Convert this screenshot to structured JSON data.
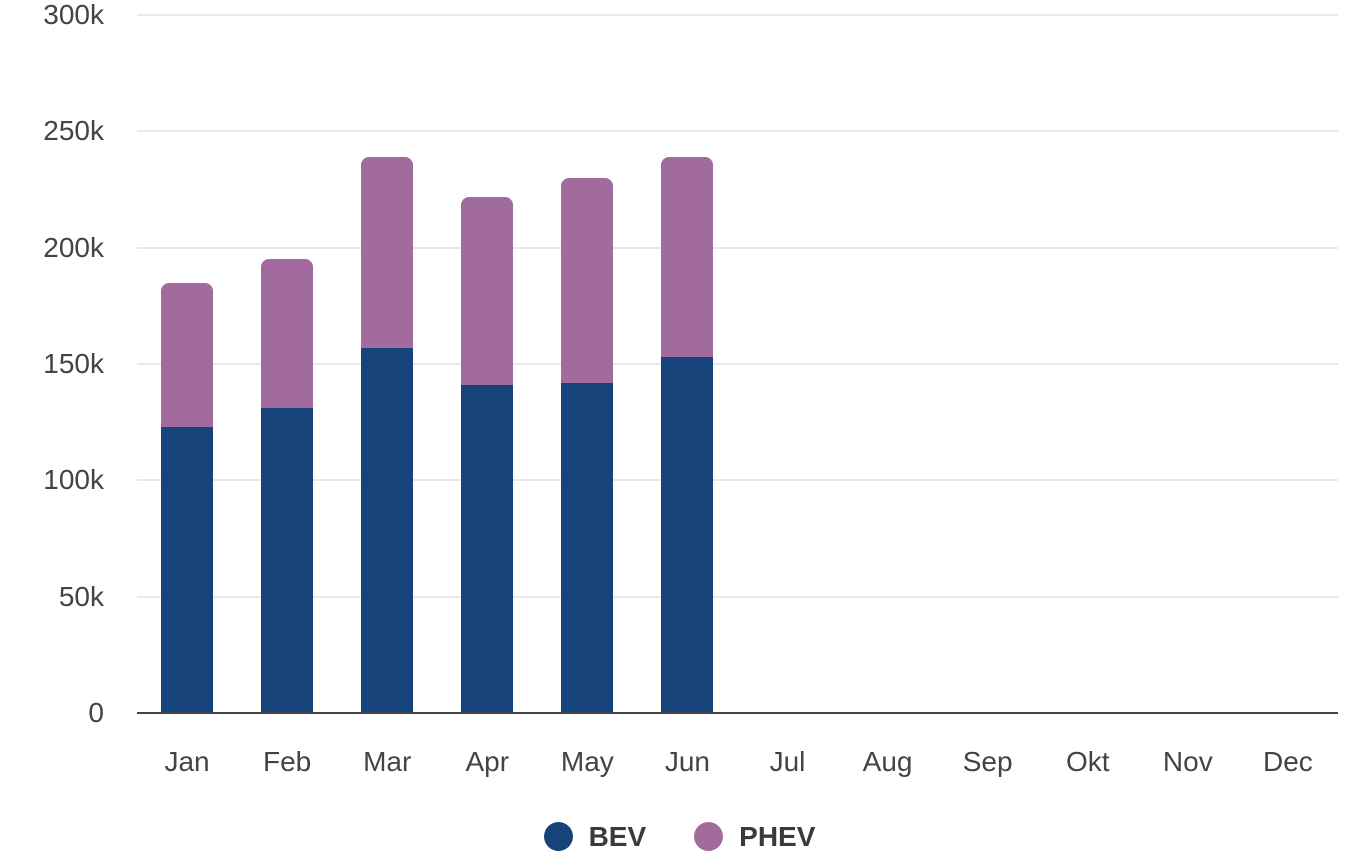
{
  "chart_data": {
    "type": "bar",
    "stacked": true,
    "title": "",
    "xlabel": "",
    "ylabel": "",
    "categories": [
      "Jan",
      "Feb",
      "Mar",
      "Apr",
      "May",
      "Jun",
      "Jul",
      "Aug",
      "Sep",
      "Okt",
      "Nov",
      "Dec"
    ],
    "series": [
      {
        "name": "BEV",
        "color": "#17437B",
        "values": [
          123000,
          131000,
          157000,
          141000,
          142000,
          153000,
          0,
          0,
          0,
          0,
          0,
          0
        ]
      },
      {
        "name": "PHEV",
        "color": "#A26B9D",
        "values": [
          62000,
          64000,
          82000,
          81000,
          88000,
          86000,
          0,
          0,
          0,
          0,
          0,
          0
        ]
      }
    ],
    "totals": [
      185000,
      195000,
      239000,
      222000,
      230000,
      239000,
      0,
      0,
      0,
      0,
      0,
      0
    ],
    "ylim": [
      0,
      300000
    ],
    "yticks": [
      {
        "value": 0,
        "label": "0"
      },
      {
        "value": 50000,
        "label": "50k"
      },
      {
        "value": 100000,
        "label": "100k"
      },
      {
        "value": 150000,
        "label": "150k"
      },
      {
        "value": 200000,
        "label": "200k"
      },
      {
        "value": 250000,
        "label": "250k"
      },
      {
        "value": 300000,
        "label": "300k"
      }
    ],
    "grid": "horizontal",
    "legend_position": "bottom",
    "colors": {
      "gridline": "#e8e8e8",
      "axis_line": "#454545",
      "tick_label": "#444444",
      "legend_label": "#3a3a3a",
      "background": "#ffffff"
    }
  }
}
